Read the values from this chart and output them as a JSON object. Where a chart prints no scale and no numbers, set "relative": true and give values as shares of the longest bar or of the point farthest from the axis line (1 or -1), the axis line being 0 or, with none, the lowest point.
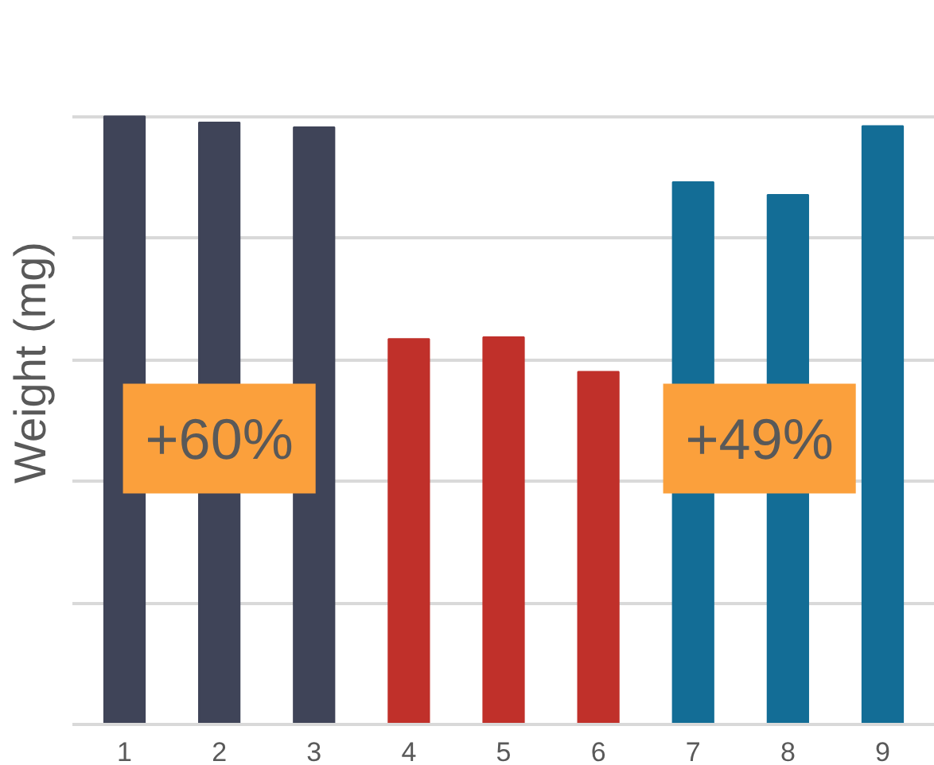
{
  "chart_data": {
    "type": "bar",
    "ylabel": "Weight (mg)",
    "relative": true,
    "grid": "y",
    "categories": [
      "1",
      "2",
      "3",
      "4",
      "5",
      "6",
      "7",
      "8",
      "9"
    ],
    "values": [
      1,
      0.99,
      0.982,
      0.634,
      0.637,
      0.58,
      0.892,
      0.871,
      0.984
    ],
    "colors": [
      "#3f4458",
      "#3f4458",
      "#3f4458",
      "#c0302a",
      "#c0302a",
      "#c0302a",
      "#136d96",
      "#136d96",
      "#136d96"
    ],
    "annotations": [
      "+60%",
      "+49%"
    ]
  }
}
